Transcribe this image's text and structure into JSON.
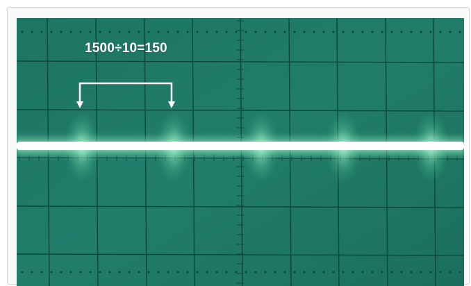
{
  "photo": {
    "subject": "oscilloscope-screen",
    "annotation": {
      "label": "1500÷10=150"
    },
    "colors": {
      "screen": "#1f7a66",
      "grid": "#0c4a3d",
      "trace": "#ffffff",
      "glow": "#9af0c4"
    }
  }
}
